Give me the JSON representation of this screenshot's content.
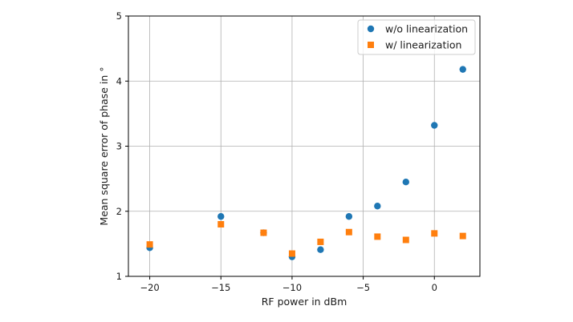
{
  "chart_data": {
    "type": "scatter",
    "xlabel": "RF power in dBm",
    "ylabel": "Mean square error of phase in °",
    "xlim": [
      -21.5,
      3.2
    ],
    "ylim": [
      1,
      5
    ],
    "xticks": [
      -20,
      -15,
      -10,
      -5,
      0
    ],
    "xtick_labels": [
      "−20",
      "−15",
      "−10",
      "−5",
      "0"
    ],
    "yticks": [
      1,
      2,
      3,
      4,
      5
    ],
    "ytick_labels": [
      "1",
      "2",
      "3",
      "4",
      "5"
    ],
    "grid": true,
    "legend_position": "top-right",
    "series": [
      {
        "name": "w/o linearization",
        "marker": "circle",
        "color": "#1f77b4",
        "x": [
          -20,
          -15,
          -12,
          -10,
          -8,
          -6,
          -4,
          -2,
          0,
          2
        ],
        "y": [
          1.44,
          1.92,
          1.67,
          1.3,
          1.41,
          1.92,
          2.08,
          2.45,
          3.32,
          4.18
        ]
      },
      {
        "name": "w/ linearization",
        "marker": "square",
        "color": "#ff7f0e",
        "x": [
          -20,
          -15,
          -12,
          -10,
          -8,
          -6,
          -4,
          -2,
          0,
          2
        ],
        "y": [
          1.49,
          1.8,
          1.67,
          1.35,
          1.53,
          1.68,
          1.61,
          1.56,
          1.66,
          1.62
        ]
      }
    ]
  }
}
